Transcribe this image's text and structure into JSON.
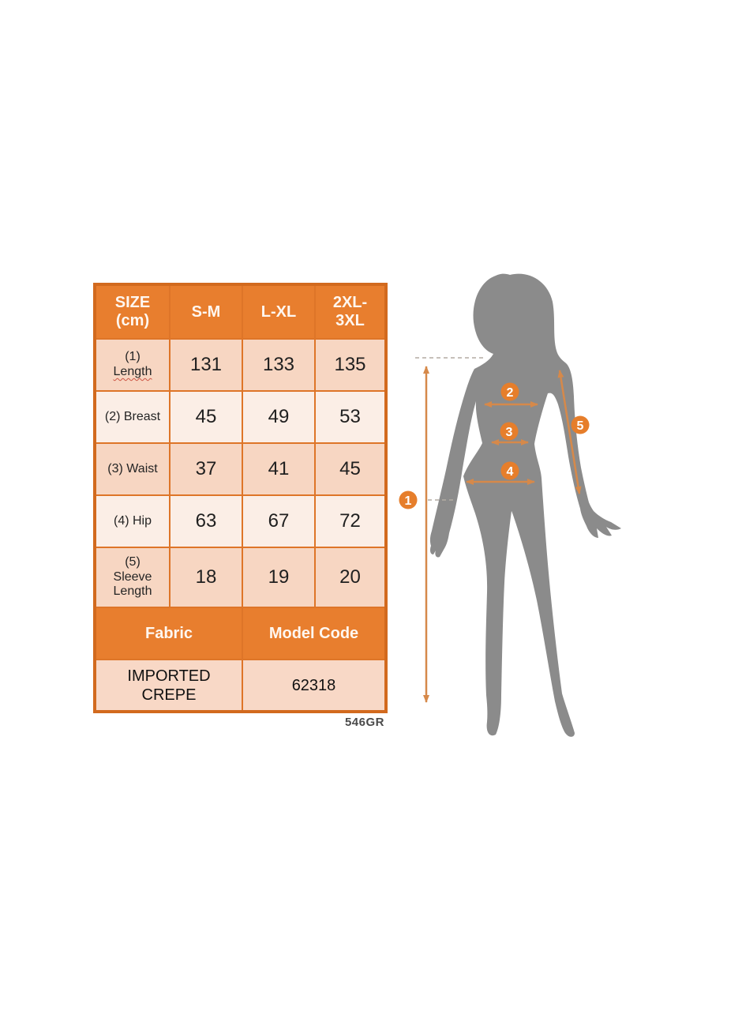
{
  "colors": {
    "header_bg": "#e87e2e",
    "cell_border": "#de7528",
    "outer_border": "#d26a1e",
    "row_pink": "#f7d6c2",
    "row_light": "#fbeee6",
    "arrow_orange": "#d6894a",
    "badge_orange": "#e67e2b",
    "silhouette_gray": "#8b8b8b"
  },
  "size_table": {
    "columns": [
      "SIZE (cm)",
      "S-M",
      "L-XL",
      "2XL-3XL"
    ],
    "rows": [
      {
        "label_lines": [
          "(1)",
          "Length"
        ],
        "wavy_line": 1,
        "values": [
          "131",
          "133",
          "135"
        ]
      },
      {
        "label_lines": [
          "(2) Breast"
        ],
        "values": [
          "45",
          "49",
          "53"
        ]
      },
      {
        "label_lines": [
          "(3) Waist"
        ],
        "values": [
          "37",
          "41",
          "45"
        ]
      },
      {
        "label_lines": [
          "(4) Hip"
        ],
        "values": [
          "63",
          "67",
          "72"
        ]
      },
      {
        "label_lines": [
          "(5)",
          "Sleeve",
          "Length"
        ],
        "values": [
          "18",
          "19",
          "20"
        ]
      }
    ],
    "footer": {
      "fabric_label": "Fabric",
      "model_code_label": "Model Code",
      "fabric_value": "IMPORTED CREPE",
      "model_code_value": "62318"
    },
    "style_code": "546GR"
  },
  "diagram": {
    "badges": [
      "1",
      "2",
      "3",
      "4",
      "5"
    ]
  }
}
